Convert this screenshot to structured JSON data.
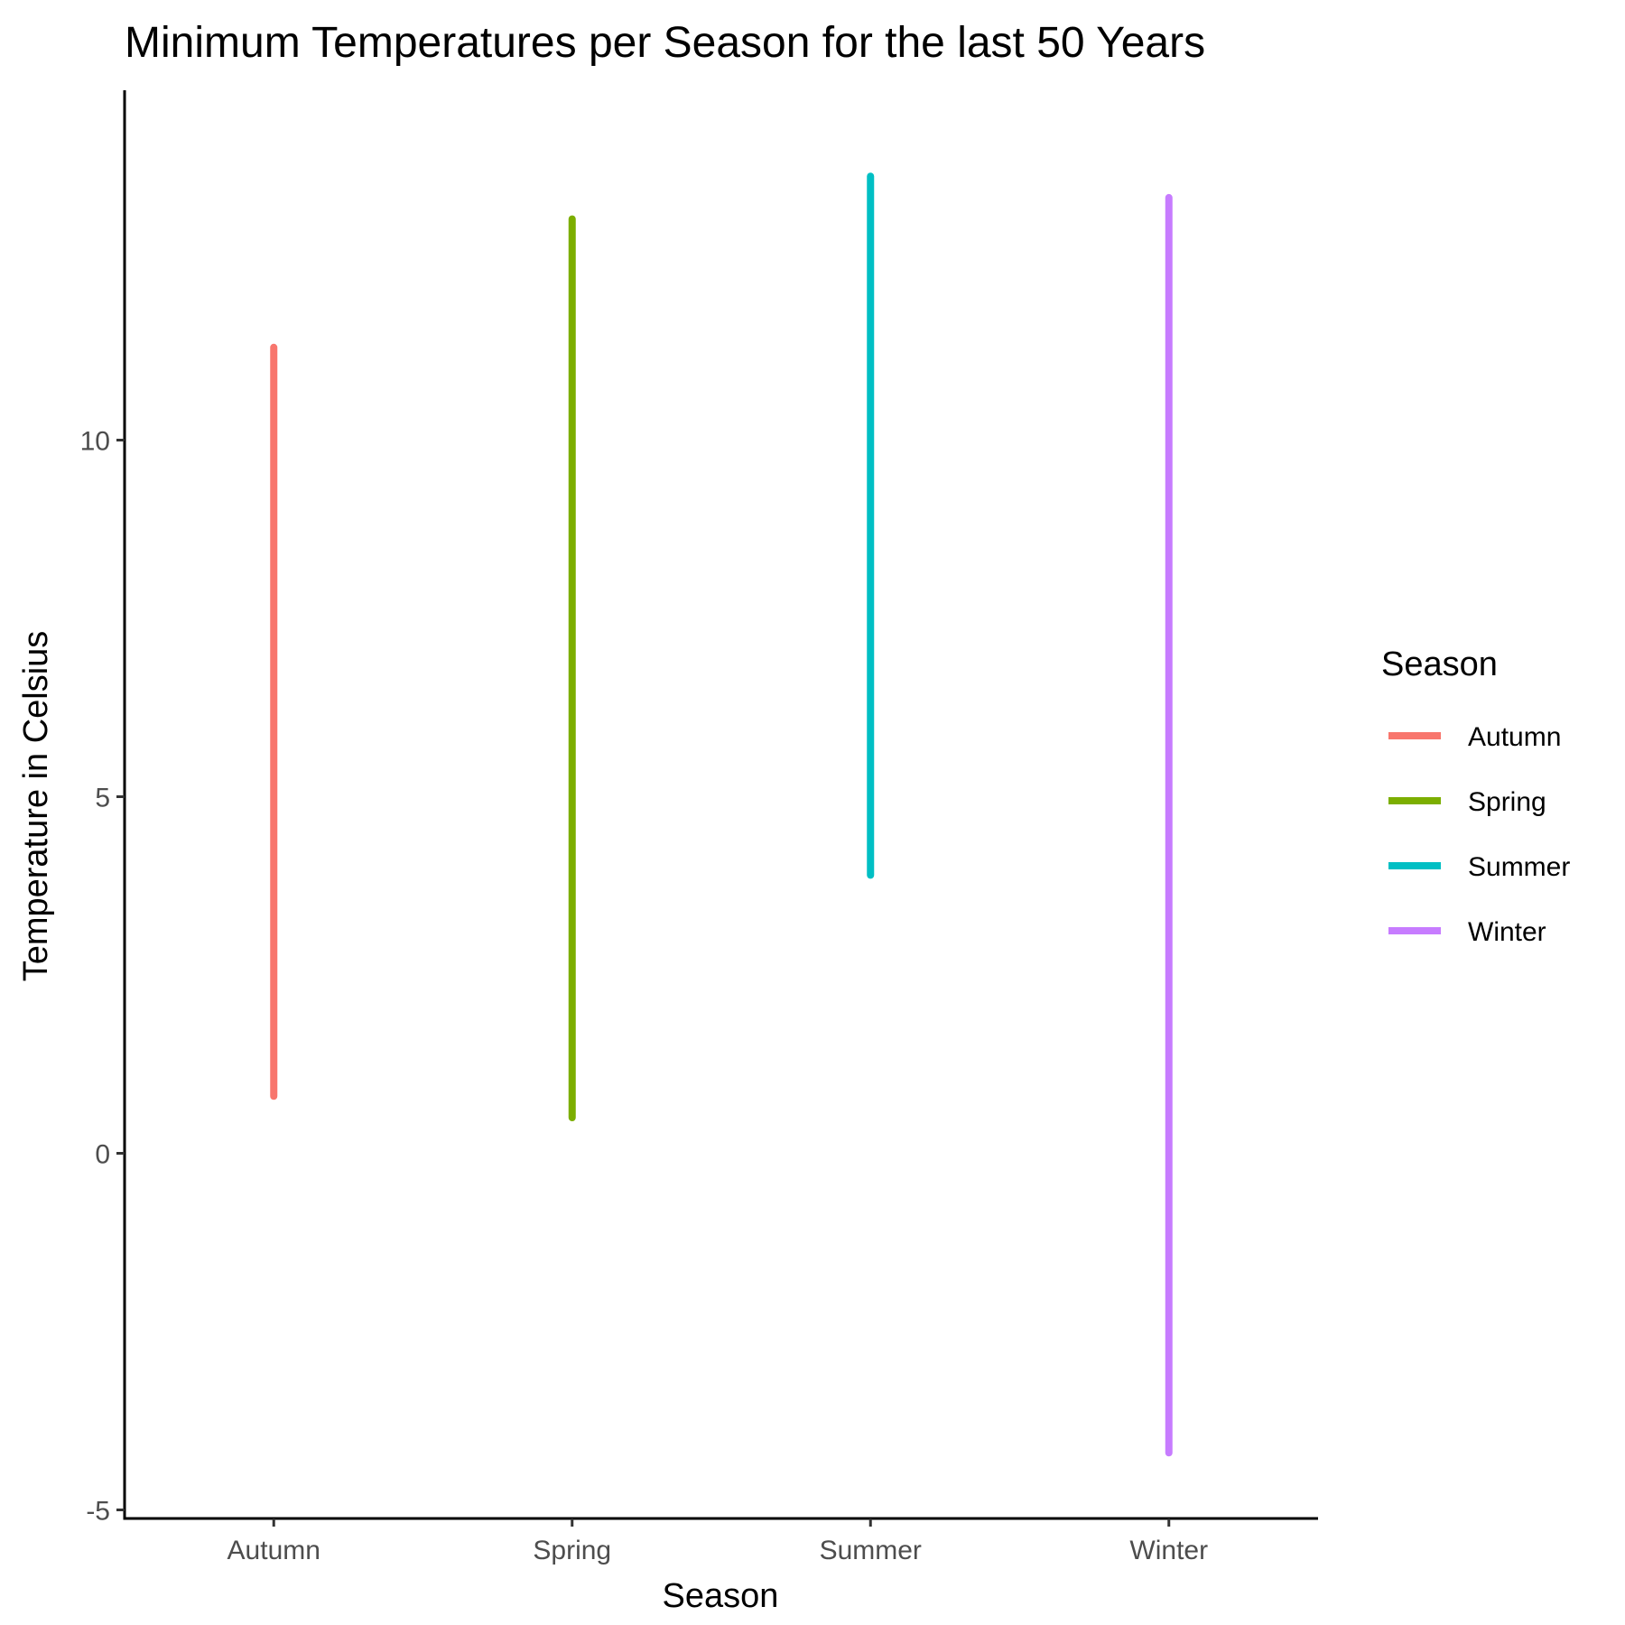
{
  "chart_data": {
    "type": "line",
    "title": "Minimum Temperatures per Season for the last 50 Years",
    "xlabel": "Season",
    "ylabel": "Temperature in Celsius",
    "categories": [
      "Autumn",
      "Spring",
      "Summer",
      "Winter"
    ],
    "ylim": [
      -5,
      14
    ],
    "yticks": [
      -5,
      0,
      5,
      10
    ],
    "ytick_labels": [
      "-5",
      "0",
      "5",
      "10"
    ],
    "grid": false,
    "legend": {
      "title": "Season",
      "position": "right",
      "entries": [
        "Autumn",
        "Spring",
        "Summer",
        "Winter"
      ]
    },
    "series": [
      {
        "name": "Autumn",
        "color": "#F8766D",
        "min": 0.8,
        "max": 11.3
      },
      {
        "name": "Spring",
        "color": "#7CAE00",
        "min": 0.5,
        "max": 13.1
      },
      {
        "name": "Summer",
        "color": "#00BFC4",
        "min": 3.9,
        "max": 13.7
      },
      {
        "name": "Winter",
        "color": "#C77CFF",
        "min": -4.2,
        "max": 13.4
      }
    ]
  }
}
